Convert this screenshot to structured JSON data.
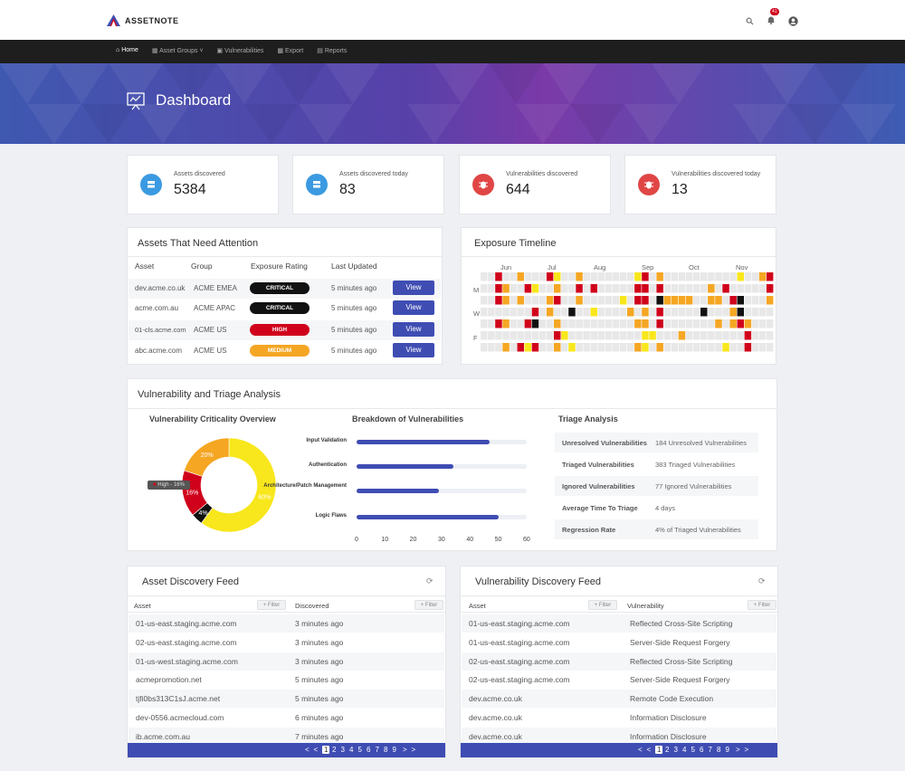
{
  "brand": {
    "name": "ASSETNOTE"
  },
  "topbar": {
    "notification_count": "41"
  },
  "nav": {
    "items": [
      "Home",
      "Asset Groups",
      "Vulnerabilities",
      "Export",
      "Reports"
    ]
  },
  "hero": {
    "title": "Dashboard"
  },
  "stats": [
    {
      "label": "Assets discovered",
      "value": "5384",
      "color": "#3b9ae1"
    },
    {
      "label": "Assets discovered today",
      "value": "83",
      "color": "#3b9ae1"
    },
    {
      "label": "Vulnerabilities discovered",
      "value": "644",
      "color": "#e04646"
    },
    {
      "label": "Vulnerabilities discovered today",
      "value": "13",
      "color": "#e04646"
    }
  ],
  "attention": {
    "title": "Assets That Need Attention",
    "headers": [
      "Asset",
      "Group",
      "Exposure Rating",
      "Last Updated"
    ],
    "view_label": "View",
    "rows": [
      {
        "asset": "dev.acme.co.uk",
        "group": "ACME EMEA",
        "rating": "CRITICAL",
        "updated": "5 minutes ago",
        "color": "#111111"
      },
      {
        "asset": "acme.com.au",
        "group": "ACME APAC",
        "rating": "CRITICAL",
        "updated": "5 minutes ago",
        "color": "#111111"
      },
      {
        "asset": "01-cls.acme.com",
        "group": "ACME US",
        "rating": "HIGH",
        "updated": "5 minutes ago",
        "color": "#d0021b"
      },
      {
        "asset": "abc.acme.com",
        "group": "ACME US",
        "rating": "MEDIUM",
        "updated": "5 minutes ago",
        "color": "#f5a623"
      }
    ]
  },
  "timeline": {
    "title": "Exposure Timeline",
    "months": [
      "Jun",
      "Jul",
      "Aug",
      "Sep",
      "Oct",
      "Nov"
    ],
    "days": [
      "M",
      "W",
      "F"
    ],
    "palette": {
      "0": "#e8e8e8",
      "1": "#f8e71c",
      "2": "#f5a623",
      "3": "#d0021b",
      "4": "#111111"
    },
    "grid": [
      "0030020003100200000001302000000000010023",
      "0032003100200303000003303000000203000003",
      "0032020002300200000103304222200220340002",
      "0000000302004001000020203000004000240000",
      "0032003400200000000002203000000020232000",
      "0000000000310000000000110002000000003000",
      "0002031300201000000002102000000001003000"
    ]
  },
  "analysis": {
    "title": "Vulnerability and Triage Analysis",
    "donut_title": "Vulnerability Criticality Overview",
    "breakdown_title": "Breakdown of Vulnerabilities",
    "triage_title": "Triage Analysis",
    "tooltip": "High - 16%",
    "triage": [
      {
        "label": "Unresolved Vulnerabilities",
        "value": "184 Unresolved Vulnerabilities"
      },
      {
        "label": "Triaged Vulnerabilities",
        "value": "383 Triaged Vulnerabilities"
      },
      {
        "label": "Ignored Vulnerabilities",
        "value": "77 Ignored Vulnerabilities"
      },
      {
        "label": "Average Time To Triage",
        "value": "4 days"
      },
      {
        "label": "Regression Rate",
        "value": "4% of Triaged Vulnerabilities"
      }
    ]
  },
  "chart_data": [
    {
      "type": "pie",
      "title": "Vulnerability Criticality Overview",
      "slices": [
        {
          "name": "Medium",
          "value": 60,
          "label": "60%",
          "color": "#f8e71c"
        },
        {
          "name": "Critical",
          "value": 4,
          "label": "4%",
          "color": "#111111"
        },
        {
          "name": "High",
          "value": 16,
          "label": "16%",
          "color": "#d0021b"
        },
        {
          "name": "Low",
          "value": 20,
          "label": "20%",
          "color": "#f5a623"
        }
      ]
    },
    {
      "type": "bar",
      "title": "Breakdown of Vulnerabilities",
      "orientation": "horizontal",
      "categories": [
        "Input Validation",
        "Authentication",
        "Architecture/Patch Management",
        "Logic Flaws"
      ],
      "values": [
        47,
        34,
        29,
        50
      ],
      "xlim": [
        0,
        60
      ],
      "xticks": [
        0,
        10,
        20,
        30,
        40,
        50,
        60
      ]
    }
  ],
  "asset_feed": {
    "title": "Asset Discovery Feed",
    "headers": [
      "Asset",
      "Discovered"
    ],
    "filter_label": "+ Filter",
    "rows": [
      [
        "01-us-east.staging.acme.com",
        "3 minutes ago"
      ],
      [
        "02-us-east.staging.acme.com",
        "3 minutes ago"
      ],
      [
        "01-us-west.staging.acme.com",
        "3 minutes ago"
      ],
      [
        "acmepromotion.net",
        "5 minutes ago"
      ],
      [
        "tjfi0bs313C1sJ.acme.net",
        "5 minutes ago"
      ],
      [
        "dev-0556.acmecloud.com",
        "6 minutes ago"
      ],
      [
        "ib.acme.com.au",
        "7 minutes ago"
      ]
    ]
  },
  "vuln_feed": {
    "title": "Vulnerability Discovery Feed",
    "headers": [
      "Asset",
      "Vulnerability"
    ],
    "filter_label": "+ Filter",
    "rows": [
      [
        "01-us-east.staging.acme.com",
        "Reflected Cross-Site Scripting"
      ],
      [
        "01-us-east.staging.acme.com",
        "Server-Side Request Forgery"
      ],
      [
        "02-us-east.staging.acme.com",
        "Reflected Cross-Site Scripting"
      ],
      [
        "02-us-east.staging.acme.com",
        "Server-Side Request Forgery"
      ],
      [
        "dev.acme.co.uk",
        "Remote Code Execution"
      ],
      [
        "dev.acme.co.uk",
        "Information Disclosure"
      ],
      [
        "dev.acme.co.uk",
        "Information Disclosure"
      ]
    ]
  },
  "pagination": {
    "prev": "<",
    "first": "<",
    "pages": [
      "1",
      "2",
      "3",
      "4",
      "5",
      "6",
      "7",
      "8",
      "9"
    ],
    "next": ">",
    "last": ">"
  }
}
